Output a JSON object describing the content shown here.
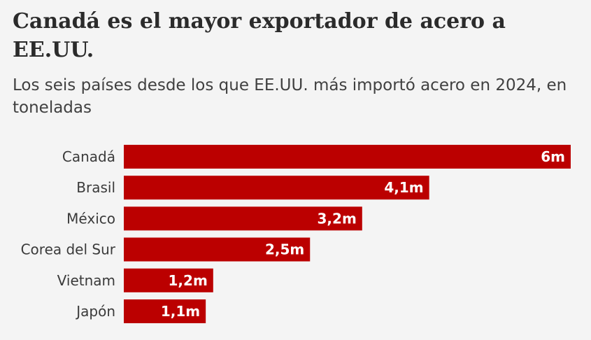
{
  "chart_data": {
    "type": "bar",
    "orientation": "horizontal",
    "title": "Canadá es el mayor exportador de acero a EE.UU.",
    "subtitle": "Los seis países desde los que EE.UU. más importó acero en 2024, en toneladas",
    "categories": [
      "Canadá",
      "Brasil",
      "México",
      "Corea del Sur",
      "Vietnam",
      "Japón"
    ],
    "values": [
      6,
      4.1,
      3.2,
      2.5,
      1.2,
      1.1
    ],
    "data_labels": [
      "6m",
      "4,1m",
      "3,2m",
      "2,5m",
      "1,2m",
      "1,1m"
    ],
    "unit": "millones de toneladas",
    "xlim": [
      0,
      6
    ],
    "grid": false,
    "legend": "none",
    "bar_color": "#bb0000",
    "label_color": "#ffffff"
  }
}
